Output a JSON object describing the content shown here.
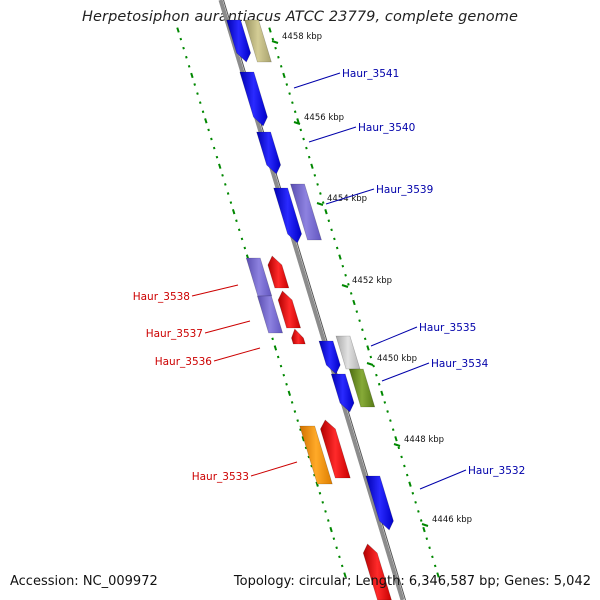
{
  "title": "Herpetosiphon aurantiacus ATCC 23779, complete genome",
  "footer": {
    "accession": "Accession: NC_009972",
    "summary": "Topology: circular; Length: 6,346,587 bp; Genes: 5,042"
  },
  "colors": {
    "backbone": "#8c8c8c",
    "forward_strand": "#0000ee",
    "reverse_strand": "#ee0000",
    "label_forward": "#0000aa",
    "label_reverse": "#cc0000",
    "tick": "#008800"
  },
  "scale_ticks": [
    {
      "label": "4458 kbp"
    },
    {
      "label": "4456 kbp"
    },
    {
      "label": "4454 kbp"
    },
    {
      "label": "4452 kbp"
    },
    {
      "label": "4450 kbp"
    },
    {
      "label": "4448 kbp"
    },
    {
      "label": "4446 kbp"
    }
  ],
  "gene_labels": [
    {
      "text": "Haur_3541",
      "strand": "forward"
    },
    {
      "text": "Haur_3540",
      "strand": "forward"
    },
    {
      "text": "Haur_3539",
      "strand": "forward"
    },
    {
      "text": "Haur_3538",
      "strand": "reverse"
    },
    {
      "text": "Haur_3537",
      "strand": "reverse"
    },
    {
      "text": "Haur_3536",
      "strand": "reverse"
    },
    {
      "text": "Haur_3535",
      "strand": "forward"
    },
    {
      "text": "Haur_3534",
      "strand": "forward"
    },
    {
      "text": "Haur_3533",
      "strand": "reverse"
    },
    {
      "text": "Haur_3532",
      "strand": "forward"
    }
  ]
}
